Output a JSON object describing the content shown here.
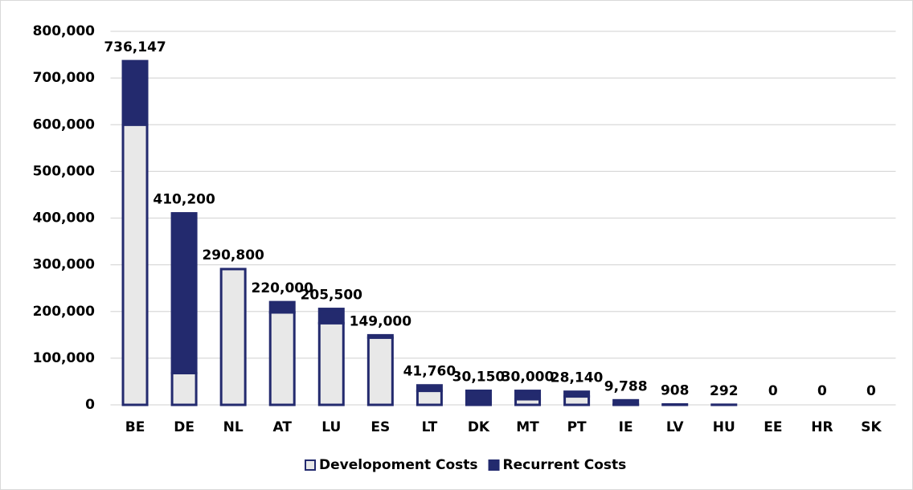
{
  "chart_data": {
    "type": "stacked_bar",
    "categories": [
      "BE",
      "DE",
      "NL",
      "AT",
      "LU",
      "ES",
      "LT",
      "DK",
      "MT",
      "PT",
      "IE",
      "LV",
      "HU",
      "EE",
      "HR",
      "SK"
    ],
    "series": [
      {
        "name": "Developoment Costs",
        "color": "#e8e8e8",
        "values": [
          600000,
          68000,
          290800,
          198000,
          175000,
          144000,
          30000,
          5000,
          12000,
          18000,
          1000,
          0,
          0,
          0,
          0,
          0
        ]
      },
      {
        "name": "Recurrent Costs",
        "color": "#232a6e",
        "values": [
          136147,
          342200,
          0,
          22000,
          30500,
          5000,
          11760,
          25150,
          18000,
          10140,
          8788,
          908,
          292,
          0,
          0,
          0
        ]
      }
    ],
    "totals": [
      {
        "value": 736147,
        "label": "736,147"
      },
      {
        "value": 410200,
        "label": "410,200"
      },
      {
        "value": 290800,
        "label": "290,800"
      },
      {
        "value": 220000,
        "label": "220,000"
      },
      {
        "value": 205500,
        "label": "205,500"
      },
      {
        "value": 149000,
        "label": "149,000"
      },
      {
        "value": 41760,
        "label": "41,760"
      },
      {
        "value": 30150,
        "label": "30,150"
      },
      {
        "value": 30000,
        "label": "30,000"
      },
      {
        "value": 28140,
        "label": "28,140"
      },
      {
        "value": 9788,
        "label": "9,788"
      },
      {
        "value": 908,
        "label": "908"
      },
      {
        "value": 292,
        "label": "292"
      },
      {
        "value": 0,
        "label": "0"
      },
      {
        "value": 0,
        "label": "0"
      },
      {
        "value": 0,
        "label": "0"
      }
    ],
    "ylim": [
      0,
      800000
    ],
    "yticks": [
      {
        "value": 0,
        "label": "0"
      },
      {
        "value": 100000,
        "label": "100,000"
      },
      {
        "value": 200000,
        "label": "200,000"
      },
      {
        "value": 300000,
        "label": "300,000"
      },
      {
        "value": 400000,
        "label": "400,000"
      },
      {
        "value": 500000,
        "label": "500,000"
      },
      {
        "value": 600000,
        "label": "600,000"
      },
      {
        "value": 700000,
        "label": "700,000"
      },
      {
        "value": 800000,
        "label": "800,000"
      }
    ],
    "grid": true,
    "legend": "bottom"
  }
}
